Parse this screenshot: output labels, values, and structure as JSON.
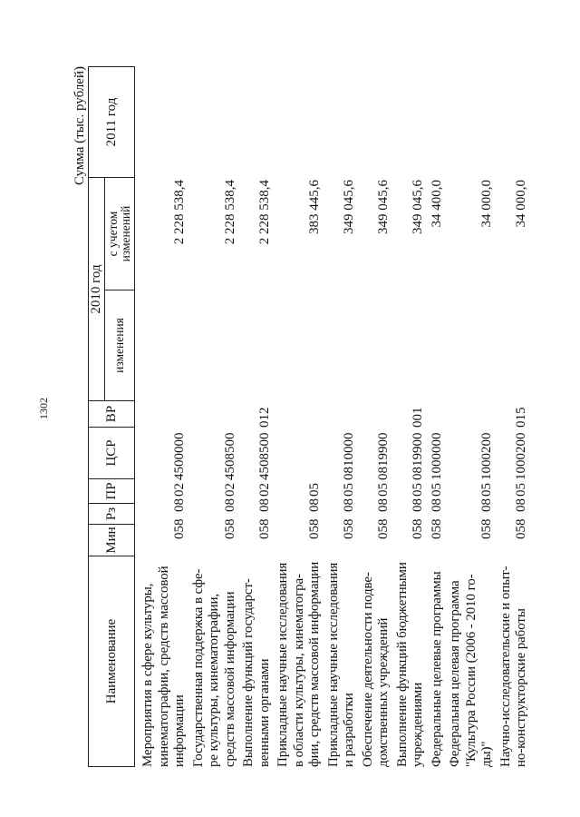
{
  "page_number": "1302",
  "unit_caption": "Сумма (тыс. рублей)",
  "header": {
    "name": "Наименование",
    "min": "Мин",
    "rz": "Рз",
    "pr": "ПР",
    "csr": "ЦСР",
    "vr": "ВР",
    "year_2010": "2010 год",
    "changes": "изменения",
    "with_changes": "с учетом\nизменений",
    "year_2011": "2011 год"
  },
  "rows": [
    {
      "name": "Мероприятия в сфере культуры,\nкинематографии, средств массовой\nинформации",
      "min": "058",
      "rz": "08",
      "pr": "02",
      "csr": "4500000",
      "vr": "",
      "changes": "",
      "with_changes": "2 228 538,4"
    },
    {
      "name": "Государственная поддержка в сфе-\nре культуры, кинематографии,\nсредств массовой информации",
      "min": "058",
      "rz": "08",
      "pr": "02",
      "csr": "4508500",
      "vr": "",
      "changes": "",
      "with_changes": "2 228 538,4"
    },
    {
      "name": "Выполнение функций государст-\nвенными органами",
      "min": "058",
      "rz": "08",
      "pr": "02",
      "csr": "4508500",
      "vr": "012",
      "changes": "",
      "with_changes": "2 228 538,4"
    },
    {
      "name": "Прикладные научные исследования\nв области культуры, кинематогра-\nфии, средств массовой информации",
      "min": "058",
      "rz": "08",
      "pr": "05",
      "csr": "",
      "vr": "",
      "changes": "",
      "with_changes": "383 445,6"
    },
    {
      "name": "Прикладные научные исследования\nи разработки",
      "min": "058",
      "rz": "08",
      "pr": "05",
      "csr": "0810000",
      "vr": "",
      "changes": "",
      "with_changes": "349 045,6"
    },
    {
      "name": "Обеспечение деятельности подве-\nдомственных учреждений",
      "min": "058",
      "rz": "08",
      "pr": "05",
      "csr": "0819900",
      "vr": "",
      "changes": "",
      "with_changes": "349 045,6"
    },
    {
      "name": "Выполнение функций бюджетными\nучреждениями",
      "min": "058",
      "rz": "08",
      "pr": "05",
      "csr": "0819900",
      "vr": "001",
      "changes": "",
      "with_changes": "349 045,6"
    },
    {
      "name": "Федеральные целевые программы",
      "min": "058",
      "rz": "08",
      "pr": "05",
      "csr": "1000000",
      "vr": "",
      "changes": "",
      "with_changes": "34 400,0"
    },
    {
      "name": "Федеральная целевая программа\n\"Культура России (2006 - 2010 го-\nды)\"",
      "min": "058",
      "rz": "08",
      "pr": "05",
      "csr": "1000200",
      "vr": "",
      "changes": "",
      "with_changes": "34 000,0"
    },
    {
      "name": "Научно-исследовательские и опыт-\nно-конструкторские работы",
      "min": "058",
      "rz": "08",
      "pr": "05",
      "csr": "1000200",
      "vr": "015",
      "changes": "",
      "with_changes": "34 000,0"
    }
  ]
}
